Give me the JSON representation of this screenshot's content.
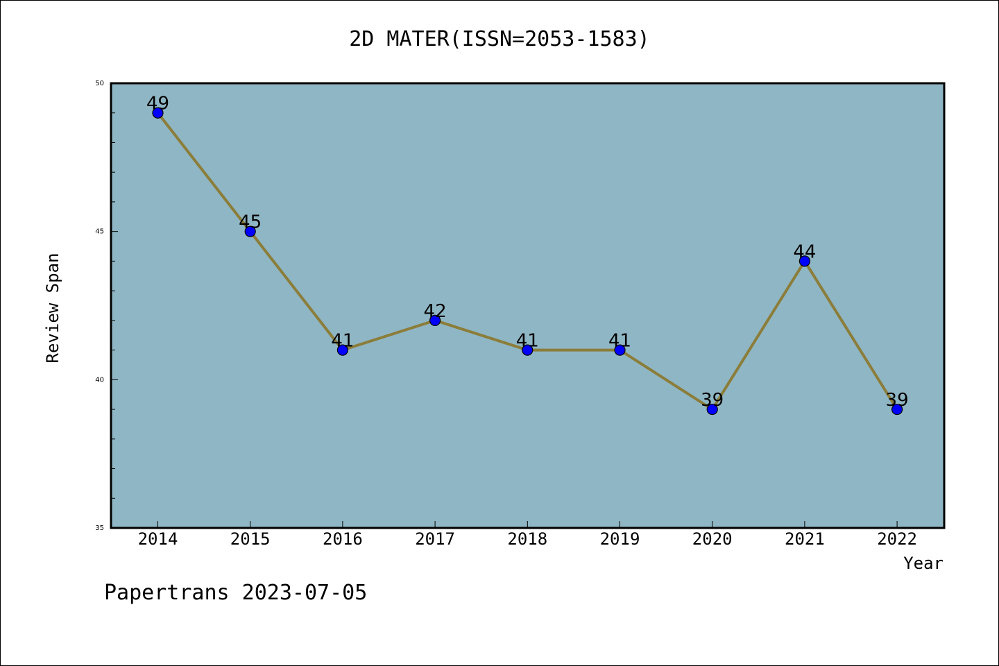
{
  "chart_data": {
    "type": "line",
    "title": "2D MATER(ISSN=2053-1583)",
    "xlabel": "Year",
    "ylabel": "Review Span",
    "categories": [
      "2014",
      "2015",
      "2016",
      "2017",
      "2018",
      "2019",
      "2020",
      "2021",
      "2022"
    ],
    "series": [
      {
        "values": [
          49,
          45,
          41,
          42,
          41,
          41,
          39,
          44,
          39
        ]
      }
    ],
    "ylim": [
      35,
      50
    ],
    "y_ticks": [
      "35",
      "40",
      "45",
      "50"
    ],
    "grid": false,
    "legend": "none",
    "colors": {
      "plot_background": "#8fb6c4",
      "line": "#8b7d3a",
      "marker": "#0000ff",
      "frame": "#000000"
    }
  },
  "footer": {
    "text": "Papertrans 2023-07-05"
  }
}
